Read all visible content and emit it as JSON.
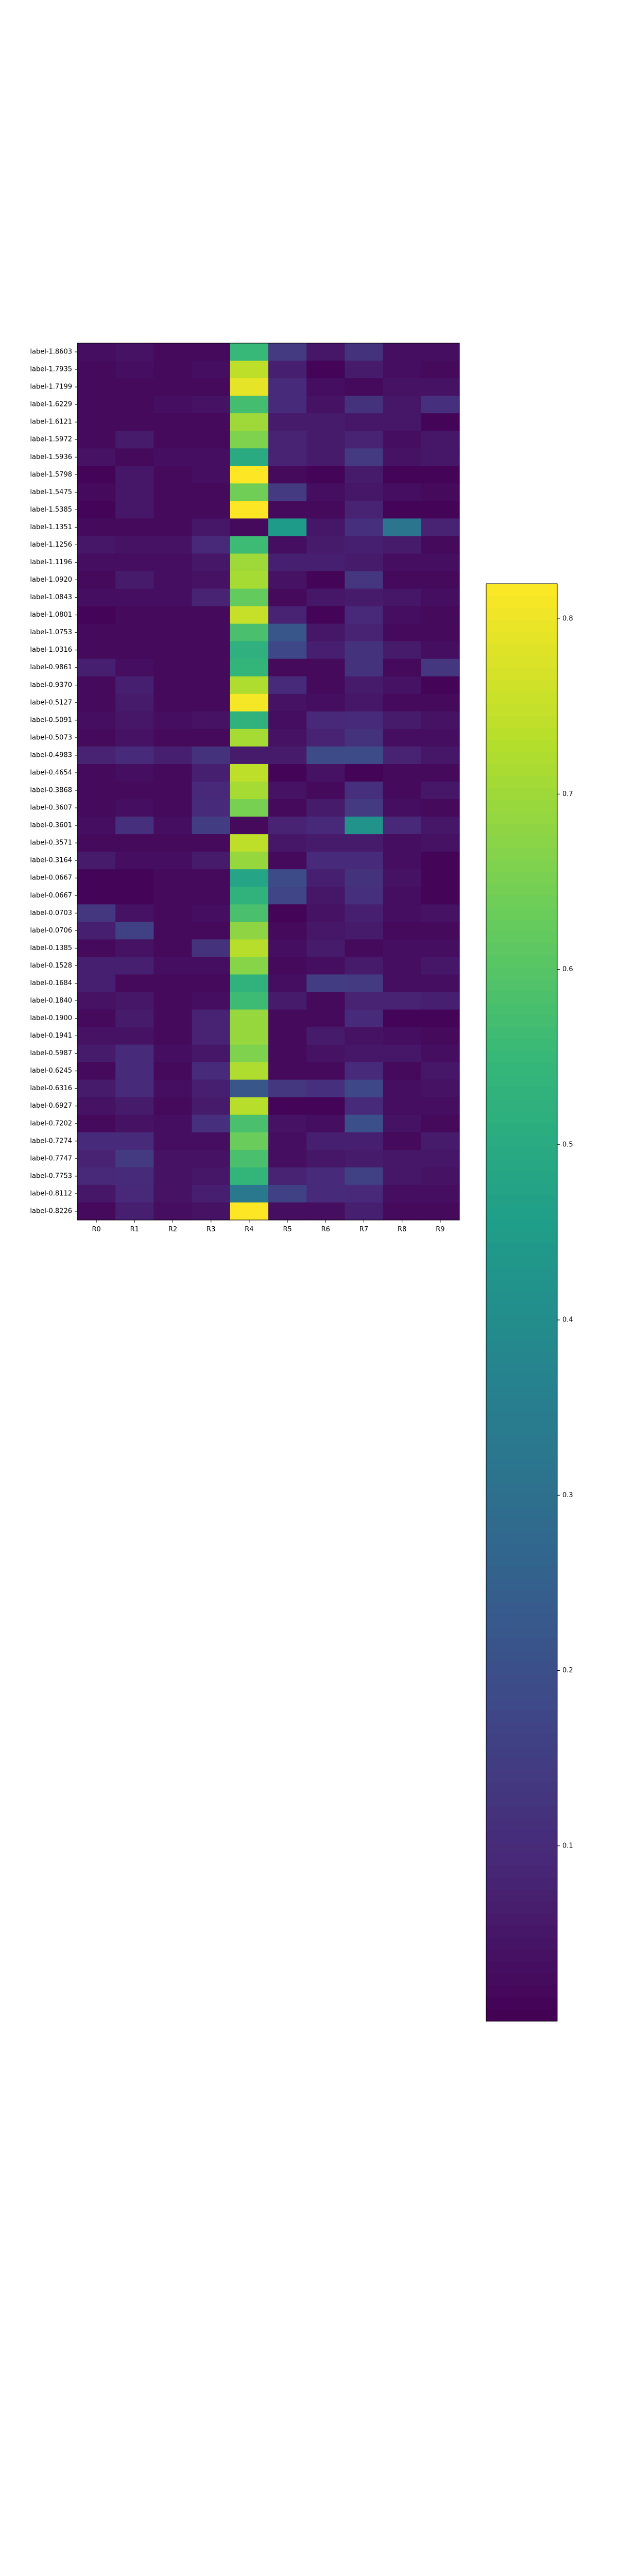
{
  "colors": {
    "background": "#ffffff",
    "frame": "#000000",
    "colormap": "viridis",
    "colormap_stops": [
      "#440154",
      "#482878",
      "#3e4989",
      "#31688e",
      "#26828e",
      "#1f9e89",
      "#35b779",
      "#6ece58",
      "#b5de2b",
      "#fde725"
    ]
  },
  "chart_data": {
    "type": "heatmap",
    "title": "",
    "xlabel": "",
    "ylabel": "",
    "columns": [
      "R0",
      "R1",
      "R2",
      "R3",
      "R4",
      "R5",
      "R6",
      "R7",
      "R8",
      "R9"
    ],
    "rows": [
      "label-1.8603",
      "label-1.7935",
      "label-1.7199",
      "label-1.6229",
      "label-1.6121",
      "label-1.5972",
      "label-1.5936",
      "label-1.5798",
      "label-1.5475",
      "label-1.5385",
      "label-1.1351",
      "label-1.1256",
      "label-1.1196",
      "label-1.0920",
      "label-1.0843",
      "label-1.0801",
      "label-1.0753",
      "label-1.0316",
      "label-0.9861",
      "label-0.9370",
      "label-0.5127",
      "label-0.5091",
      "label-0.5073",
      "label-0.4983",
      "label-0.4654",
      "label-0.3868",
      "label-0.3607",
      "label-0.3601",
      "label-0.3571",
      "label-0.3164",
      "label-0.0667",
      "label-0.0667",
      "label-0.0703",
      "label-0.0706",
      "label-0.1385",
      "label-0.1528",
      "label-0.1684",
      "label-0.1840",
      "label-0.1900",
      "label-0.1941",
      "label-0.5987",
      "label-0.6245",
      "label-0.6316",
      "label-0.6927",
      "label-0.7202",
      "label-0.7274",
      "label-0.7747",
      "label-0.7753",
      "label-0.8112",
      "label-0.8226"
    ],
    "values": [
      [
        0.03,
        0.04,
        0.02,
        0.02,
        0.55,
        0.14,
        0.05,
        0.12,
        0.03,
        0.03
      ],
      [
        0.02,
        0.03,
        0.02,
        0.03,
        0.74,
        0.07,
        0.01,
        0.06,
        0.03,
        0.02
      ],
      [
        0.02,
        0.02,
        0.02,
        0.02,
        0.79,
        0.1,
        0.03,
        0.02,
        0.04,
        0.04
      ],
      [
        0.02,
        0.02,
        0.03,
        0.04,
        0.57,
        0.1,
        0.04,
        0.12,
        0.05,
        0.11
      ],
      [
        0.02,
        0.02,
        0.02,
        0.02,
        0.7,
        0.06,
        0.06,
        0.05,
        0.05,
        0.01
      ],
      [
        0.02,
        0.06,
        0.02,
        0.02,
        0.66,
        0.08,
        0.06,
        0.08,
        0.03,
        0.05
      ],
      [
        0.04,
        0.02,
        0.03,
        0.03,
        0.5,
        0.08,
        0.06,
        0.14,
        0.04,
        0.05
      ],
      [
        0.01,
        0.05,
        0.02,
        0.03,
        0.82,
        0.02,
        0.01,
        0.06,
        0.01,
        0.01
      ],
      [
        0.02,
        0.05,
        0.02,
        0.02,
        0.64,
        0.14,
        0.03,
        0.05,
        0.03,
        0.02
      ],
      [
        0.01,
        0.05,
        0.02,
        0.02,
        0.82,
        0.02,
        0.02,
        0.08,
        0.01,
        0.01
      ],
      [
        0.02,
        0.02,
        0.02,
        0.05,
        0.02,
        0.45,
        0.05,
        0.11,
        0.32,
        0.08
      ],
      [
        0.05,
        0.04,
        0.04,
        0.09,
        0.56,
        0.03,
        0.06,
        0.07,
        0.06,
        0.02
      ],
      [
        0.03,
        0.03,
        0.03,
        0.05,
        0.7,
        0.07,
        0.07,
        0.06,
        0.03,
        0.03
      ],
      [
        0.02,
        0.06,
        0.03,
        0.04,
        0.71,
        0.04,
        0.01,
        0.13,
        0.02,
        0.02
      ],
      [
        0.03,
        0.03,
        0.03,
        0.08,
        0.62,
        0.02,
        0.05,
        0.06,
        0.05,
        0.03
      ],
      [
        0.01,
        0.02,
        0.02,
        0.02,
        0.75,
        0.08,
        0.01,
        0.09,
        0.03,
        0.02
      ],
      [
        0.02,
        0.02,
        0.02,
        0.02,
        0.58,
        0.22,
        0.05,
        0.08,
        0.02,
        0.02
      ],
      [
        0.02,
        0.02,
        0.02,
        0.02,
        0.52,
        0.18,
        0.07,
        0.12,
        0.06,
        0.03
      ],
      [
        0.07,
        0.03,
        0.02,
        0.02,
        0.54,
        0.02,
        0.02,
        0.12,
        0.02,
        0.13
      ],
      [
        0.02,
        0.07,
        0.02,
        0.02,
        0.72,
        0.1,
        0.02,
        0.06,
        0.04,
        0.01
      ],
      [
        0.02,
        0.06,
        0.02,
        0.02,
        0.81,
        0.04,
        0.03,
        0.05,
        0.02,
        0.02
      ],
      [
        0.03,
        0.05,
        0.03,
        0.04,
        0.53,
        0.03,
        0.09,
        0.1,
        0.06,
        0.04
      ],
      [
        0.02,
        0.04,
        0.02,
        0.02,
        0.71,
        0.04,
        0.08,
        0.12,
        0.03,
        0.03
      ],
      [
        0.08,
        0.1,
        0.07,
        0.12,
        0.06,
        0.06,
        0.19,
        0.19,
        0.08,
        0.05
      ],
      [
        0.02,
        0.03,
        0.02,
        0.07,
        0.74,
        0.01,
        0.04,
        0.01,
        0.02,
        0.02
      ],
      [
        0.02,
        0.02,
        0.02,
        0.09,
        0.71,
        0.04,
        0.02,
        0.11,
        0.02,
        0.05
      ],
      [
        0.02,
        0.03,
        0.02,
        0.1,
        0.65,
        0.02,
        0.06,
        0.14,
        0.03,
        0.02
      ],
      [
        0.03,
        0.11,
        0.03,
        0.15,
        0.02,
        0.08,
        0.09,
        0.42,
        0.09,
        0.05
      ],
      [
        0.02,
        0.02,
        0.02,
        0.02,
        0.74,
        0.05,
        0.06,
        0.06,
        0.03,
        0.04
      ],
      [
        0.06,
        0.03,
        0.03,
        0.06,
        0.69,
        0.02,
        0.1,
        0.1,
        0.03,
        0.01
      ],
      [
        0.01,
        0.01,
        0.02,
        0.02,
        0.48,
        0.19,
        0.07,
        0.12,
        0.04,
        0.01
      ],
      [
        0.01,
        0.01,
        0.02,
        0.02,
        0.53,
        0.17,
        0.05,
        0.11,
        0.03,
        0.01
      ],
      [
        0.13,
        0.04,
        0.02,
        0.03,
        0.58,
        0.01,
        0.04,
        0.07,
        0.03,
        0.04
      ],
      [
        0.07,
        0.16,
        0.02,
        0.02,
        0.68,
        0.02,
        0.05,
        0.06,
        0.02,
        0.02
      ],
      [
        0.02,
        0.04,
        0.02,
        0.12,
        0.73,
        0.03,
        0.06,
        0.02,
        0.03,
        0.03
      ],
      [
        0.07,
        0.07,
        0.03,
        0.03,
        0.67,
        0.02,
        0.03,
        0.06,
        0.03,
        0.05
      ],
      [
        0.07,
        0.02,
        0.02,
        0.02,
        0.53,
        0.03,
        0.15,
        0.14,
        0.03,
        0.03
      ],
      [
        0.04,
        0.05,
        0.02,
        0.03,
        0.56,
        0.06,
        0.02,
        0.08,
        0.08,
        0.07
      ],
      [
        0.02,
        0.06,
        0.02,
        0.08,
        0.69,
        0.02,
        0.02,
        0.1,
        0.01,
        0.01
      ],
      [
        0.04,
        0.04,
        0.02,
        0.08,
        0.69,
        0.02,
        0.06,
        0.04,
        0.03,
        0.02
      ],
      [
        0.06,
        0.1,
        0.03,
        0.05,
        0.66,
        0.02,
        0.04,
        0.05,
        0.05,
        0.03
      ],
      [
        0.02,
        0.1,
        0.02,
        0.1,
        0.72,
        0.02,
        0.02,
        0.1,
        0.02,
        0.05
      ],
      [
        0.06,
        0.1,
        0.03,
        0.07,
        0.22,
        0.13,
        0.11,
        0.18,
        0.03,
        0.04
      ],
      [
        0.04,
        0.06,
        0.02,
        0.06,
        0.73,
        0.01,
        0.01,
        0.1,
        0.03,
        0.03
      ],
      [
        0.02,
        0.04,
        0.03,
        0.11,
        0.58,
        0.04,
        0.03,
        0.2,
        0.04,
        0.02
      ],
      [
        0.1,
        0.1,
        0.03,
        0.03,
        0.63,
        0.03,
        0.07,
        0.07,
        0.02,
        0.06
      ],
      [
        0.08,
        0.14,
        0.04,
        0.04,
        0.58,
        0.03,
        0.05,
        0.06,
        0.05,
        0.05
      ],
      [
        0.09,
        0.1,
        0.04,
        0.05,
        0.54,
        0.08,
        0.1,
        0.16,
        0.05,
        0.04
      ],
      [
        0.05,
        0.09,
        0.04,
        0.07,
        0.33,
        0.16,
        0.1,
        0.09,
        0.03,
        0.03
      ],
      [
        0.02,
        0.07,
        0.03,
        0.04,
        0.82,
        0.03,
        0.03,
        0.07,
        0.02,
        0.02
      ]
    ],
    "colorbar": {
      "range": [
        0.0,
        0.82
      ],
      "ticks": [
        0.1,
        0.2,
        0.3,
        0.4,
        0.5,
        0.6,
        0.7,
        0.8
      ],
      "tick_labels": [
        "0.1",
        "0.2",
        "0.3",
        "0.4",
        "0.5",
        "0.6",
        "0.7",
        "0.8"
      ]
    },
    "grid": false,
    "legend": "colorbar-right"
  }
}
